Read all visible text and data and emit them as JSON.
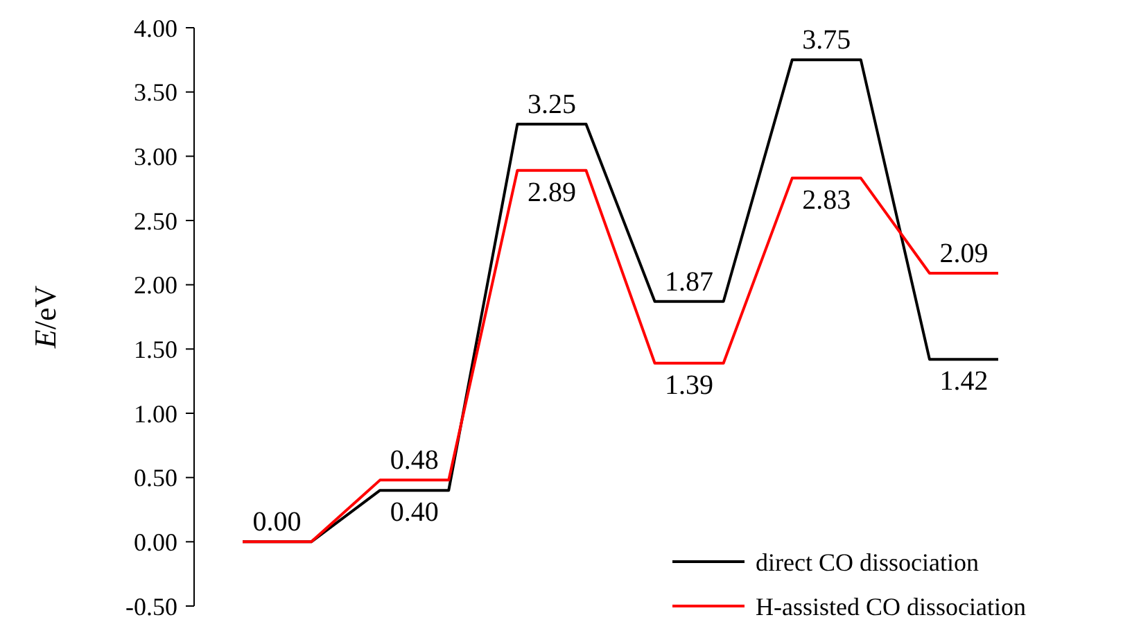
{
  "chart_data": {
    "type": "line",
    "ylabel": "E/eV",
    "categories": [
      null,
      null,
      null,
      null,
      null,
      null,
      null,
      null,
      null,
      null,
      null,
      null
    ],
    "tick_labels": "y",
    "ylim": [
      -0.5,
      4
    ],
    "yticks": [
      {
        "value": -0.5,
        "label": "-0.50"
      },
      {
        "value": 0,
        "label": "0.00"
      },
      {
        "value": 0.5,
        "label": "0.50"
      },
      {
        "value": 1,
        "label": "1.00"
      },
      {
        "value": 1.5,
        "label": "1.50"
      },
      {
        "value": 2,
        "label": "2.00"
      },
      {
        "value": 2.5,
        "label": "2.50"
      },
      {
        "value": 3,
        "label": "3.00"
      },
      {
        "value": 3.5,
        "label": "3.50"
      },
      {
        "value": 4,
        "label": "4.00"
      }
    ],
    "grid": false,
    "legend": "bottom right",
    "marker": "none",
    "line_style": "solid",
    "series": [
      {
        "name": "direct CO dissociation",
        "color": "#000000",
        "values": [
          0,
          0,
          0.4,
          0.4,
          3.25,
          3.25,
          1.87,
          1.87,
          3.75,
          3.75,
          1.42,
          1.42
        ],
        "value_labels": [
          null,
          "0.00",
          null,
          "0.40",
          null,
          "3.25",
          null,
          "1.87",
          null,
          "3.75",
          null,
          "1.42"
        ]
      },
      {
        "name": "H-assisted CO dissociation",
        "color": "#ff0000",
        "values": [
          0,
          0,
          0.48,
          0.48,
          2.89,
          2.89,
          1.39,
          1.39,
          2.83,
          2.83,
          2.09,
          2.09
        ],
        "value_labels": [
          null,
          null,
          null,
          "0.48",
          null,
          "2.89",
          null,
          "1.39",
          null,
          "2.83",
          null,
          "2.09"
        ]
      }
    ]
  }
}
